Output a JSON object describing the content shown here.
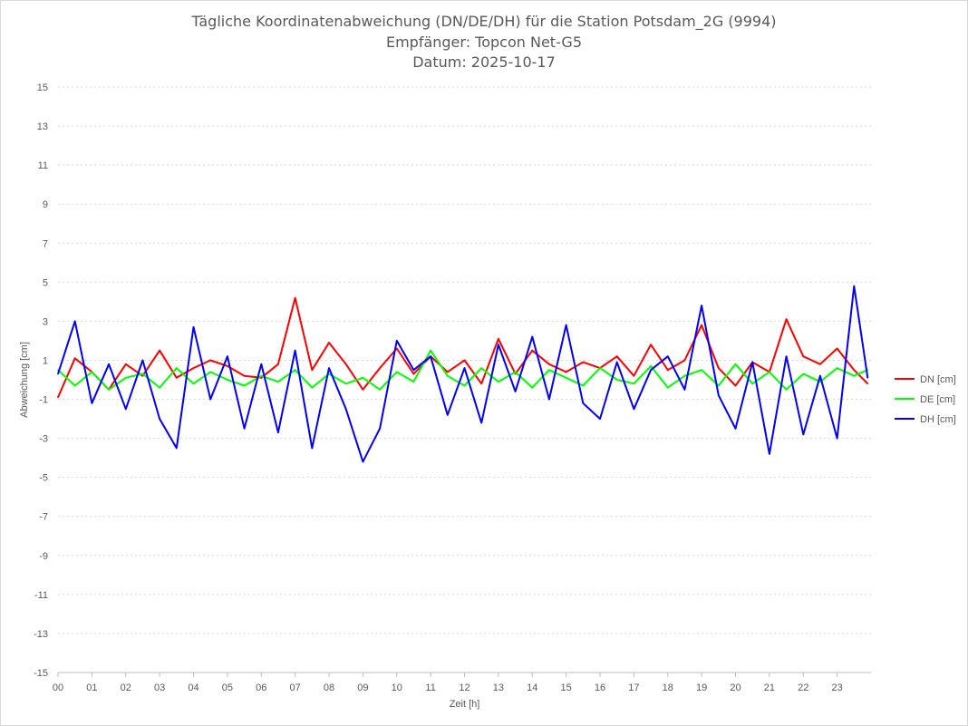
{
  "chart_data": {
    "type": "line",
    "title": [
      "Tägliche Koordinatenabweichung (DN/DE/DH) für die Station Potsdam_2G (9994)",
      "Empfänger: Topcon Net-G5",
      "Datum: 2025-10-17"
    ],
    "xlabel": "Zeit [h]",
    "ylabel": "Abweichung [cm]",
    "xlim": [
      0,
      24
    ],
    "ylim": [
      -15,
      15
    ],
    "y_ticks": [
      15,
      13,
      11,
      9,
      7,
      5,
      3,
      1,
      -1,
      -3,
      -5,
      -7,
      -9,
      -11,
      -13,
      -15
    ],
    "x_ticks": [
      "00",
      "01",
      "02",
      "03",
      "04",
      "05",
      "06",
      "07",
      "08",
      "09",
      "10",
      "11",
      "12",
      "13",
      "14",
      "15",
      "16",
      "17",
      "18",
      "19",
      "20",
      "21",
      "22",
      "23"
    ],
    "grid": "horizontal dotted",
    "legend_position": "right",
    "x_hours": [
      0,
      0.5,
      1,
      1.5,
      2,
      2.5,
      3,
      3.5,
      4,
      4.5,
      5,
      5.5,
      6,
      6.5,
      7,
      7.5,
      8,
      8.5,
      9,
      9.5,
      10,
      10.5,
      11,
      11.5,
      12,
      12.5,
      13,
      13.5,
      14,
      14.5,
      15,
      15.5,
      16,
      16.5,
      17,
      17.5,
      18,
      18.5,
      19,
      19.5,
      20,
      20.5,
      21,
      21.5,
      22,
      22.5,
      23,
      23.5,
      23.9
    ],
    "series": [
      {
        "name": "DN [cm]",
        "color": "#ff0000",
        "values": [
          -0.9,
          1.1,
          0.4,
          -0.5,
          0.8,
          0.2,
          1.5,
          0.1,
          0.6,
          1.0,
          0.7,
          0.2,
          0.1,
          0.8,
          4.2,
          0.5,
          1.9,
          0.8,
          -0.5,
          0.6,
          1.6,
          0.3,
          1.2,
          0.4,
          1.0,
          -0.2,
          2.1,
          0.3,
          1.5,
          0.8,
          0.4,
          0.9,
          0.6,
          1.2,
          0.2,
          1.8,
          0.5,
          1.0,
          2.8,
          0.6,
          -0.3,
          0.9,
          0.4,
          3.1,
          1.2,
          0.8,
          1.6,
          0.5,
          -0.2
        ]
      },
      {
        "name": "DE [cm]",
        "color": "#00ff00",
        "values": [
          0.5,
          -0.3,
          0.4,
          -0.5,
          0.1,
          0.3,
          -0.4,
          0.6,
          -0.2,
          0.4,
          0.0,
          -0.3,
          0.2,
          -0.1,
          0.5,
          -0.4,
          0.3,
          -0.2,
          0.1,
          -0.5,
          0.4,
          -0.1,
          1.5,
          0.2,
          -0.3,
          0.6,
          -0.1,
          0.4,
          -0.4,
          0.5,
          0.1,
          -0.3,
          0.6,
          0.0,
          -0.2,
          0.7,
          -0.4,
          0.2,
          0.5,
          -0.3,
          0.8,
          -0.2,
          0.4,
          -0.5,
          0.3,
          -0.1,
          0.6,
          0.2,
          0.5
        ]
      },
      {
        "name": "DH [cm]",
        "color": "#0000ff",
        "values": [
          0.3,
          3.0,
          -1.2,
          0.8,
          -1.5,
          1.0,
          -2.0,
          -3.5,
          2.7,
          -1.0,
          1.2,
          -2.5,
          0.8,
          -2.7,
          1.5,
          -3.5,
          0.6,
          -1.5,
          -4.2,
          -2.5,
          2.0,
          0.5,
          1.2,
          -1.8,
          0.6,
          -2.2,
          1.8,
          -0.6,
          2.2,
          -1.0,
          2.8,
          -1.2,
          -2.0,
          0.9,
          -1.5,
          0.5,
          1.2,
          -0.5,
          3.8,
          -0.8,
          -2.5,
          0.9,
          -3.8,
          1.2,
          -2.8,
          0.2,
          -3.0,
          4.8,
          0.1
        ]
      }
    ]
  }
}
